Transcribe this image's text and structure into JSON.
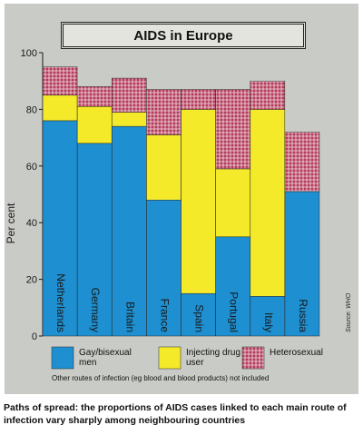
{
  "chart_data": {
    "type": "bar",
    "stacked": true,
    "title": "AIDS in Europe",
    "ylabel": "Per cent",
    "ylim": [
      0,
      100
    ],
    "yticks": [
      "0",
      "20",
      "40",
      "60",
      "80",
      "100"
    ],
    "categories": [
      "Netherlands",
      "Germany",
      "Britain",
      "France",
      "Spain",
      "Portugal",
      "Italy",
      "Russia"
    ],
    "series": [
      {
        "name": "Gay/bisexual men",
        "values": [
          76,
          68,
          74,
          48,
          15,
          35,
          14,
          51
        ],
        "color": "#1e8fd0"
      },
      {
        "name": "Injecting drug user",
        "values": [
          9,
          13,
          5,
          23,
          65,
          24,
          66,
          0
        ],
        "color": "#f4ea2a"
      },
      {
        "name": "Heterosexual",
        "values": [
          10,
          7,
          12,
          16,
          7,
          28,
          10,
          21
        ],
        "color": "#b53a5a"
      }
    ],
    "source": "Source: WHO",
    "note": "Other routes of infection (eg blood and blood products) not included",
    "caption": "Paths of spread: the proportions of AIDS cases linked to each main route of infection vary sharply among neighbouring countries",
    "grid": false,
    "legend_position": "bottom"
  },
  "colors": {
    "panel": "#c9cbc6",
    "axis": "#1a1a1a"
  }
}
